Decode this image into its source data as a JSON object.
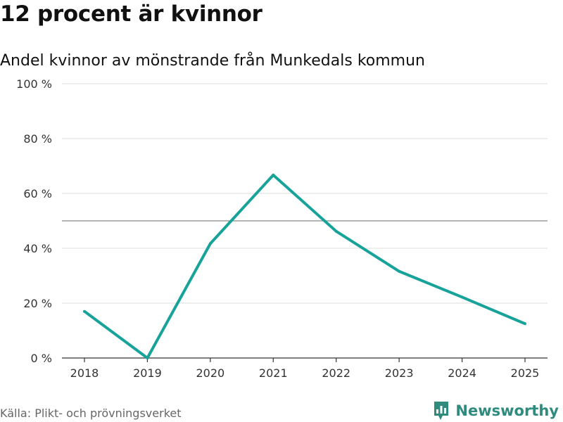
{
  "title": "12 procent är kvinnor",
  "subtitle": "Andel kvinnor av mönstrande från Munkedals kommun",
  "source": "Källa: Plikt- och prövningsverket",
  "brand": {
    "name": "Newsworthy",
    "color": "#2e8b7d",
    "icon": "newsworthy-logo-icon"
  },
  "colors": {
    "line": "#17a39a",
    "grid": "#dddddd",
    "reference": "#888888",
    "axis": "#333333"
  },
  "chart_data": {
    "type": "line",
    "categories": [
      "2018",
      "2019",
      "2020",
      "2021",
      "2022",
      "2023",
      "2024",
      "2025"
    ],
    "values": [
      17,
      0,
      41.7,
      66.7,
      46.2,
      31.6,
      22.2,
      12.5
    ],
    "title": "12 procent är kvinnor",
    "subtitle": "Andel kvinnor av mönstrande från Munkedals kommun",
    "ylim": [
      0,
      100
    ],
    "yticks": [
      0,
      20,
      40,
      60,
      80,
      100
    ],
    "ytick_labels": [
      "0 %",
      "20 %",
      "40 %",
      "60 %",
      "80 %",
      "100 %"
    ],
    "reference_line": 50,
    "grid": true,
    "legend": "none"
  }
}
